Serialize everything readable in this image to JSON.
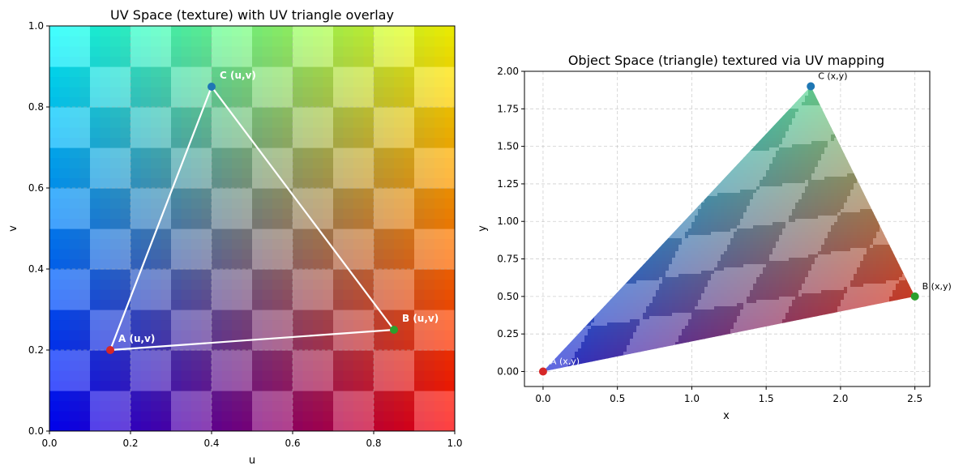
{
  "chart_data": [
    {
      "type": "heatmap",
      "title": "UV Space (texture) with UV triangle overlay",
      "xlabel": "u",
      "ylabel": "v",
      "xlim": [
        0,
        1
      ],
      "ylim": [
        0,
        1
      ],
      "xticks": [
        "0.0",
        "0.2",
        "0.4",
        "0.6",
        "0.8",
        "1.0"
      ],
      "yticks": [
        "0.0",
        "0.2",
        "0.4",
        "0.6",
        "0.8",
        "1.0"
      ],
      "grid": true,
      "checker_cells": 10,
      "texture": "R = u, G = v, B = 1 - u",
      "points": [
        {
          "label": "A (u,v)",
          "x": 0.15,
          "y": 0.2,
          "color": "#d62728"
        },
        {
          "label": "B (u,v)",
          "x": 0.85,
          "y": 0.25,
          "color": "#2ca02c"
        },
        {
          "label": "C (u,v)",
          "x": 0.4,
          "y": 0.85,
          "color": "#1f77b4"
        }
      ]
    },
    {
      "type": "scatter",
      "title": "Object Space (triangle) textured via UV mapping",
      "xlabel": "x",
      "ylabel": "y",
      "xlim": [
        -0.125,
        2.6
      ],
      "ylim": [
        -0.1,
        2.0
      ],
      "xticks": [
        "0.0",
        "0.5",
        "1.0",
        "1.5",
        "2.0",
        "2.5"
      ],
      "yticks": [
        "0.00",
        "0.25",
        "0.50",
        "0.75",
        "1.00",
        "1.25",
        "1.50",
        "1.75",
        "2.00"
      ],
      "grid": true,
      "points": [
        {
          "label": "A (x,y)",
          "x": 0.0,
          "y": 0.0,
          "color": "#d62728"
        },
        {
          "label": "B (x,y)",
          "x": 2.5,
          "y": 0.5,
          "color": "#2ca02c"
        },
        {
          "label": "C (x,y)",
          "x": 1.8,
          "y": 1.9,
          "color": "#1f77b4"
        }
      ]
    }
  ]
}
